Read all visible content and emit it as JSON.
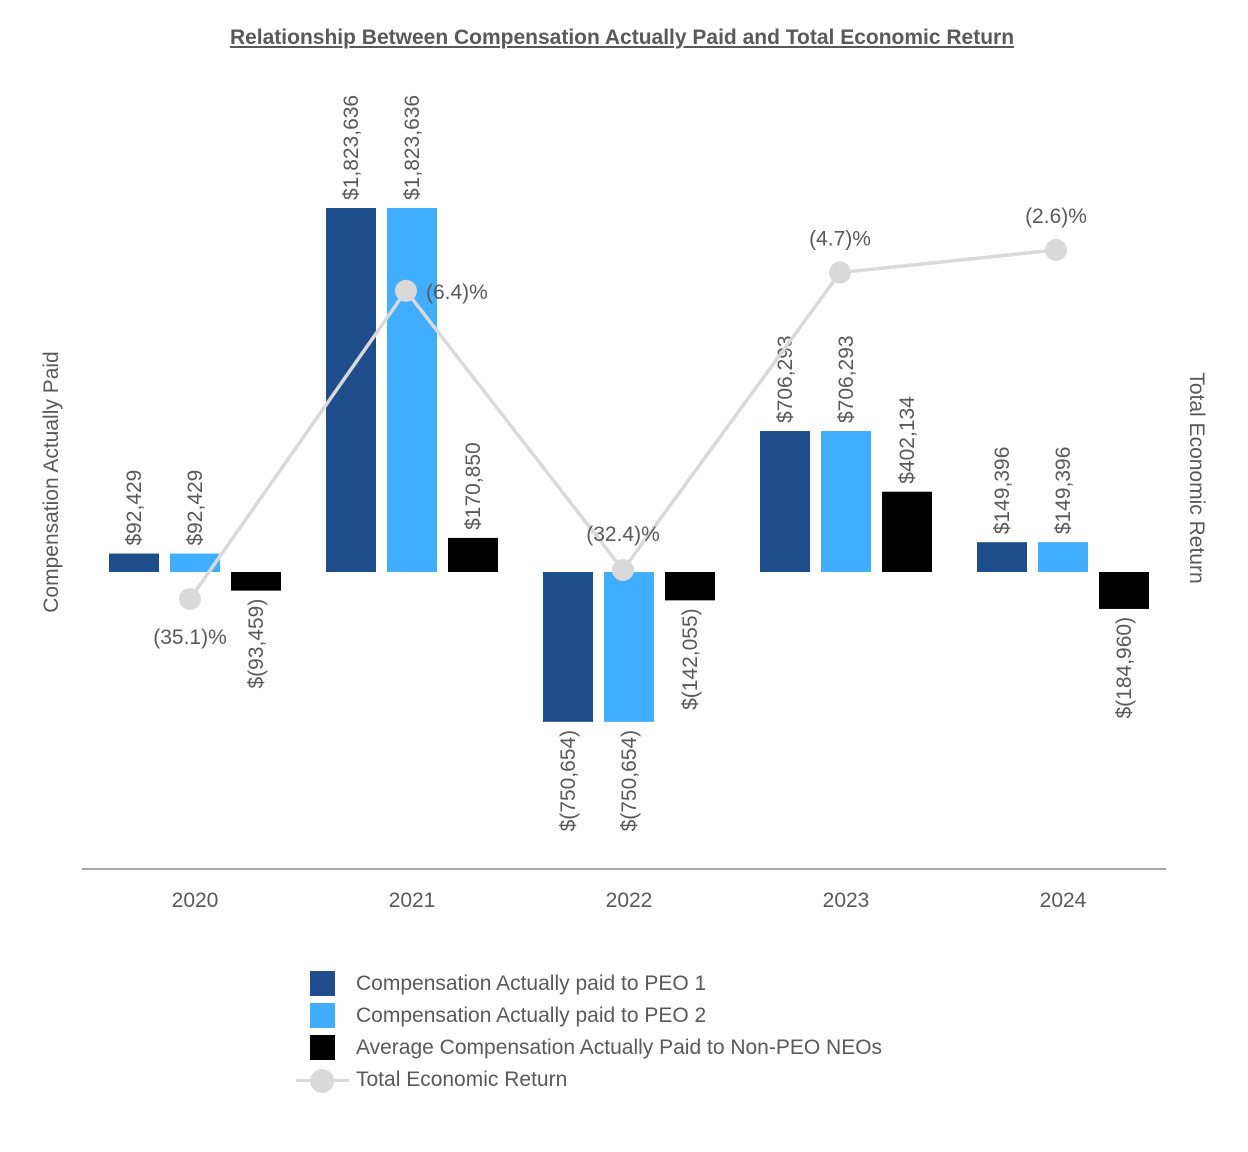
{
  "chart_data": {
    "type": "bar",
    "title": "Relationship Between Compensation Actually Paid and Total Economic Return",
    "ylabel": "Compensation Actually Paid",
    "y2label": "Total Economic Return",
    "categories": [
      "2020",
      "2021",
      "2022",
      "2023",
      "2024"
    ],
    "ylim": [
      -2000000,
      2200000
    ],
    "y2lim": [
      -40,
      6
    ],
    "grid": false,
    "legend_position": "bottom",
    "series": [
      {
        "name": "Compensation Actually paid to PEO 1",
        "kind": "bar",
        "color": "#1f4e8c",
        "values": [
          92429,
          1823636,
          -750654,
          706293,
          149396
        ],
        "labels": [
          "$92,429",
          "$1,823,636",
          "$(750,654)",
          "$706,293",
          "$149,396"
        ]
      },
      {
        "name": "Compensation Actually paid to PEO 2",
        "kind": "bar",
        "color": "#41adff",
        "values": [
          92429,
          1823636,
          -750654,
          706293,
          149396
        ],
        "labels": [
          "$92,429",
          "$1,823,636",
          "$(750,654)",
          "$706,293",
          "$149,396"
        ]
      },
      {
        "name": "Average Compensation Actually Paid to Non-PEO NEOs",
        "kind": "bar",
        "color": "#000000",
        "values": [
          -93459,
          170850,
          -142055,
          402134,
          -184960
        ],
        "labels": [
          "$(93,459)",
          "$170,850",
          "$(142,055)",
          "$402,134",
          "$(184,960)"
        ]
      },
      {
        "name": "Total Economic Return",
        "kind": "line",
        "axis": "right",
        "color": "#d9d9d9",
        "values": [
          -35.1,
          -6.4,
          -32.4,
          -4.7,
          -2.6
        ],
        "labels": [
          "(35.1)%",
          "(6.4)%",
          "(32.4)%",
          "(4.7)%",
          "(2.6)%"
        ]
      }
    ]
  }
}
